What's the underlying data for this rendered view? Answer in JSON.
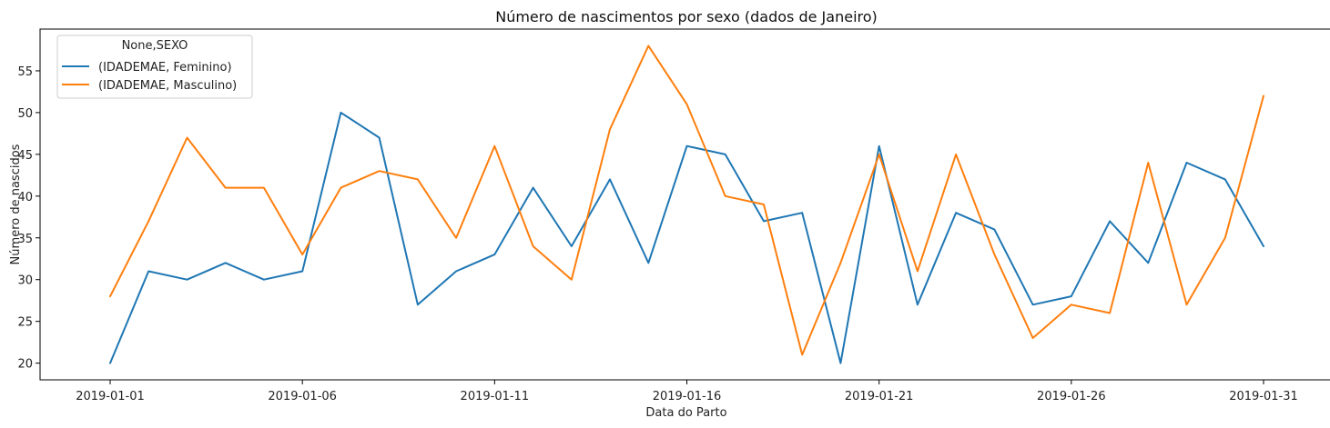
{
  "chart_data": {
    "type": "line",
    "title": "Número de nascimentos por sexo (dados de Janeiro)",
    "xlabel": "Data do Parto",
    "ylabel": "Número de nascidos",
    "x": [
      "2019-01-01",
      "2019-01-02",
      "2019-01-03",
      "2019-01-04",
      "2019-01-05",
      "2019-01-06",
      "2019-01-07",
      "2019-01-08",
      "2019-01-09",
      "2019-01-10",
      "2019-01-11",
      "2019-01-12",
      "2019-01-13",
      "2019-01-14",
      "2019-01-15",
      "2019-01-16",
      "2019-01-17",
      "2019-01-18",
      "2019-01-19",
      "2019-01-20",
      "2019-01-21",
      "2019-01-22",
      "2019-01-23",
      "2019-01-24",
      "2019-01-25",
      "2019-01-26",
      "2019-01-27",
      "2019-01-28",
      "2019-01-29",
      "2019-01-30",
      "2019-01-31"
    ],
    "xticks": [
      "2019-01-01",
      "2019-01-06",
      "2019-01-11",
      "2019-01-16",
      "2019-01-21",
      "2019-01-26",
      "2019-01-31"
    ],
    "yticks": [
      20,
      25,
      30,
      35,
      40,
      45,
      50,
      55
    ],
    "ylim": [
      18,
      60
    ],
    "grid": false,
    "legend": {
      "title": "None,SEXO",
      "placement": "top-left"
    },
    "series": [
      {
        "name": "(IDADEMAE, Feminino)",
        "color": "#1f77b4",
        "values": [
          20,
          31,
          30,
          32,
          30,
          31,
          50,
          47,
          27,
          31,
          33,
          41,
          34,
          42,
          32,
          46,
          45,
          37,
          38,
          20,
          46,
          27,
          38,
          36,
          27,
          28,
          37,
          32,
          44,
          42,
          34
        ]
      },
      {
        "name": "(IDADEMAE, Masculino)",
        "color": "#ff7f0e",
        "values": [
          28,
          37,
          47,
          41,
          41,
          33,
          41,
          43,
          42,
          35,
          46,
          34,
          30,
          48,
          58,
          51,
          40,
          39,
          21,
          32,
          45,
          31,
          45,
          33,
          23,
          27,
          26,
          44,
          27,
          35,
          52
        ]
      }
    ]
  }
}
